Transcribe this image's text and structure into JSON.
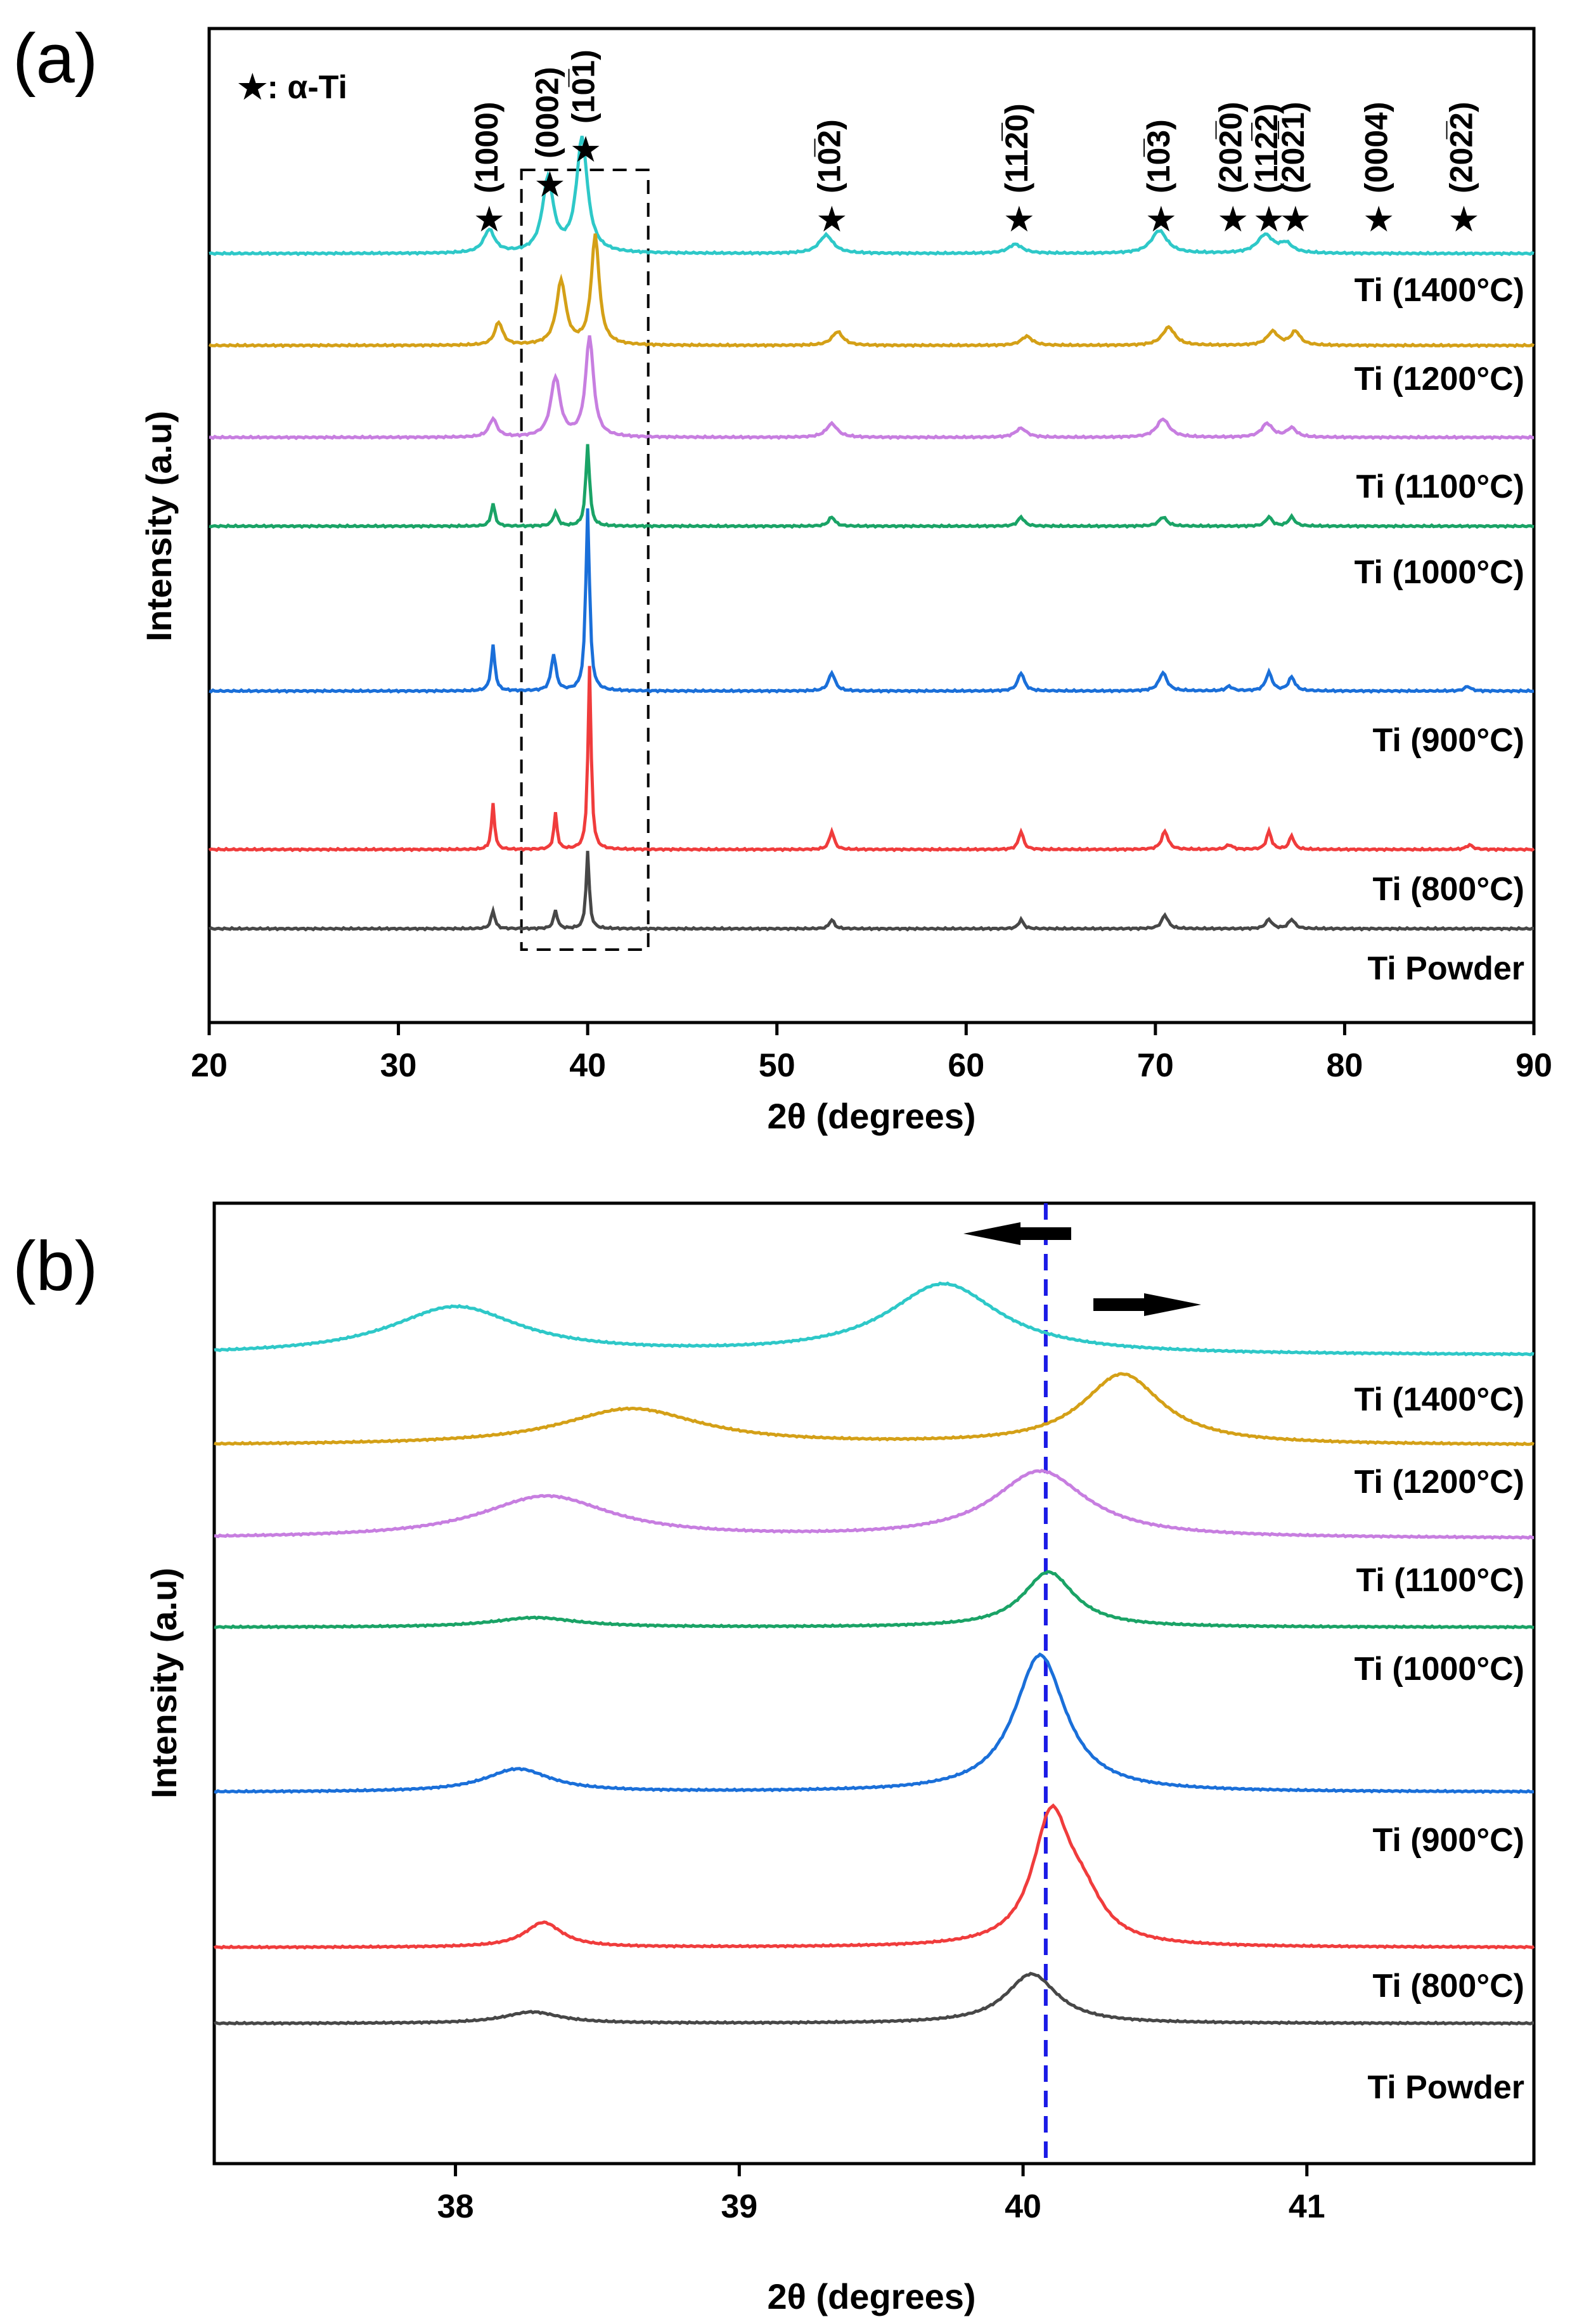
{
  "chart_data": [
    {
      "panel": "(a)",
      "type": "line",
      "xlabel": "2θ (degrees)",
      "ylabel": "Intensity (a.u)",
      "xlim": [
        20,
        90
      ],
      "xticks": [
        "20",
        "30",
        "40",
        "50",
        "60",
        "70",
        "80",
        "90"
      ],
      "legend_note": "★: α-Ti",
      "highlight_box_x": [
        36.5,
        43.2
      ],
      "reflections": [
        {
          "hkl": "(1000)",
          "x": 34.8
        },
        {
          "hkl": "(0002)",
          "x": 38.0
        },
        {
          "hkl": "(10̅1)",
          "x": 39.9
        },
        {
          "hkl": "(10̅2)",
          "x": 52.9
        },
        {
          "hkl": "(112̅0)",
          "x": 62.8
        },
        {
          "hkl": "(10̅3)",
          "x": 70.3
        },
        {
          "hkl": "(202̅0)",
          "x": 74.1
        },
        {
          "hkl": "(112̅2)",
          "x": 76.0
        },
        {
          "hkl": "(202̅1)",
          "x": 77.4
        },
        {
          "hkl": "(0004)",
          "x": 81.8
        },
        {
          "hkl": "(202̅2)",
          "x": 86.3
        }
      ],
      "series": [
        {
          "name": "Ti (1400°C)",
          "color": "#2ec8c8",
          "baseline": 0.0,
          "peaks": [
            [
              34.8,
              0.5,
              0.35
            ],
            [
              37.9,
              1.6,
              0.35
            ],
            [
              39.7,
              2.5,
              0.35
            ],
            [
              52.6,
              0.4,
              0.45
            ],
            [
              62.6,
              0.2,
              0.45
            ],
            [
              70.2,
              0.5,
              0.5
            ],
            [
              75.8,
              0.4,
              0.5
            ],
            [
              76.9,
              0.2,
              0.4
            ]
          ]
        },
        {
          "name": "Ti (1200°C)",
          "color": "#d4a017",
          "baseline": 1.0,
          "peaks": [
            [
              35.3,
              0.5,
              0.25
            ],
            [
              38.6,
              1.4,
              0.3
            ],
            [
              40.4,
              2.4,
              0.25
            ],
            [
              53.2,
              0.3,
              0.35
            ],
            [
              63.2,
              0.2,
              0.35
            ],
            [
              70.7,
              0.4,
              0.4
            ],
            [
              76.2,
              0.3,
              0.35
            ],
            [
              77.4,
              0.3,
              0.3
            ]
          ]
        },
        {
          "name": "Ti (1100°C)",
          "color": "#c77ee0",
          "baseline": 2.0,
          "peaks": [
            [
              35.0,
              0.4,
              0.25
            ],
            [
              38.3,
              1.3,
              0.3
            ],
            [
              40.1,
              2.2,
              0.25
            ],
            [
              52.9,
              0.3,
              0.35
            ],
            [
              62.9,
              0.2,
              0.35
            ],
            [
              70.4,
              0.4,
              0.4
            ],
            [
              75.9,
              0.3,
              0.35
            ],
            [
              77.2,
              0.2,
              0.3
            ]
          ]
        },
        {
          "name": "Ti (1000°C)",
          "color": "#1aa366",
          "baseline": 3.0,
          "peaks": [
            [
              35.0,
              0.5,
              0.12
            ],
            [
              38.3,
              0.3,
              0.15
            ],
            [
              40.0,
              1.8,
              0.12
            ],
            [
              52.9,
              0.2,
              0.2
            ],
            [
              62.9,
              0.2,
              0.2
            ],
            [
              70.4,
              0.2,
              0.25
            ],
            [
              76.0,
              0.2,
              0.2
            ],
            [
              77.2,
              0.2,
              0.2
            ]
          ]
        },
        {
          "name": "Ti (900°C)",
          "color": "#1a6fd9",
          "baseline": 4.0,
          "peaks": [
            [
              35.0,
              1.0,
              0.12
            ],
            [
              38.2,
              0.8,
              0.15
            ],
            [
              40.0,
              4.0,
              0.12
            ],
            [
              52.9,
              0.4,
              0.2
            ],
            [
              62.9,
              0.4,
              0.2
            ],
            [
              70.4,
              0.4,
              0.25
            ],
            [
              73.9,
              0.1,
              0.2
            ],
            [
              76.0,
              0.4,
              0.2
            ],
            [
              77.2,
              0.3,
              0.2
            ],
            [
              86.5,
              0.1,
              0.2
            ]
          ]
        },
        {
          "name": "Ti (800°C)",
          "color": "#f03c3c",
          "baseline": 5.0,
          "peaks": [
            [
              35.0,
              1.0,
              0.1
            ],
            [
              38.3,
              0.8,
              0.1
            ],
            [
              40.1,
              4.0,
              0.1
            ],
            [
              52.9,
              0.4,
              0.15
            ],
            [
              62.9,
              0.4,
              0.15
            ],
            [
              70.5,
              0.4,
              0.2
            ],
            [
              73.9,
              0.1,
              0.2
            ],
            [
              76.0,
              0.4,
              0.15
            ],
            [
              77.2,
              0.3,
              0.15
            ],
            [
              86.6,
              0.1,
              0.2
            ]
          ]
        },
        {
          "name": "Ti Powder",
          "color": "#474747",
          "baseline": 6.0,
          "peaks": [
            [
              35.0,
              0.4,
              0.12
            ],
            [
              38.3,
              0.4,
              0.12
            ],
            [
              40.0,
              1.7,
              0.1
            ],
            [
              52.9,
              0.2,
              0.15
            ],
            [
              62.9,
              0.2,
              0.15
            ],
            [
              70.5,
              0.3,
              0.2
            ],
            [
              76.0,
              0.2,
              0.2
            ],
            [
              77.2,
              0.2,
              0.2
            ]
          ]
        }
      ]
    },
    {
      "panel": "(b)",
      "type": "line",
      "xlabel": "2θ (degrees)",
      "ylabel": "Intensity (a.u)",
      "xlim": [
        37.15,
        41.8
      ],
      "xticks": [
        "38",
        "39",
        "40",
        "41"
      ],
      "reference_line_x": 40.08,
      "series": [
        {
          "name": "Ti (1400°C)",
          "color": "#2ec8c8",
          "baseline": 0.0,
          "peaks": [
            [
              38.0,
              1.25,
              0.28
            ],
            [
              39.72,
              1.85,
              0.24
            ]
          ]
        },
        {
          "name": "Ti (1200°C)",
          "color": "#d4a017",
          "baseline": 1.0,
          "peaks": [
            [
              38.62,
              0.95,
              0.3
            ],
            [
              40.35,
              1.85,
              0.17
            ]
          ]
        },
        {
          "name": "Ti (1100°C)",
          "color": "#c77ee0",
          "baseline": 2.0,
          "peaks": [
            [
              38.32,
              1.1,
              0.28
            ],
            [
              40.06,
              1.75,
              0.2
            ]
          ]
        },
        {
          "name": "Ti (1000°C)",
          "color": "#1aa366",
          "baseline": 3.0,
          "peaks": [
            [
              38.28,
              0.25,
              0.18
            ],
            [
              40.09,
              1.45,
              0.11
            ]
          ]
        },
        {
          "name": "Ti (900°C)",
          "color": "#1a6fd9",
          "baseline": 4.0,
          "peaks": [
            [
              38.22,
              0.6,
              0.14
            ],
            [
              40.06,
              3.6,
              0.11
            ]
          ]
        },
        {
          "name": "Ti (800°C)",
          "color": "#f03c3c",
          "baseline": 5.0,
          "peaks": [
            [
              38.31,
              0.65,
              0.08
            ],
            [
              40.1,
              3.3,
              0.08
            ],
            [
              40.21,
              1.0,
              0.09
            ]
          ]
        },
        {
          "name": "Ti Powder",
          "color": "#474747",
          "baseline": 6.0,
          "peaks": [
            [
              38.27,
              0.3,
              0.12
            ],
            [
              40.03,
              1.3,
              0.11
            ]
          ]
        }
      ]
    }
  ]
}
